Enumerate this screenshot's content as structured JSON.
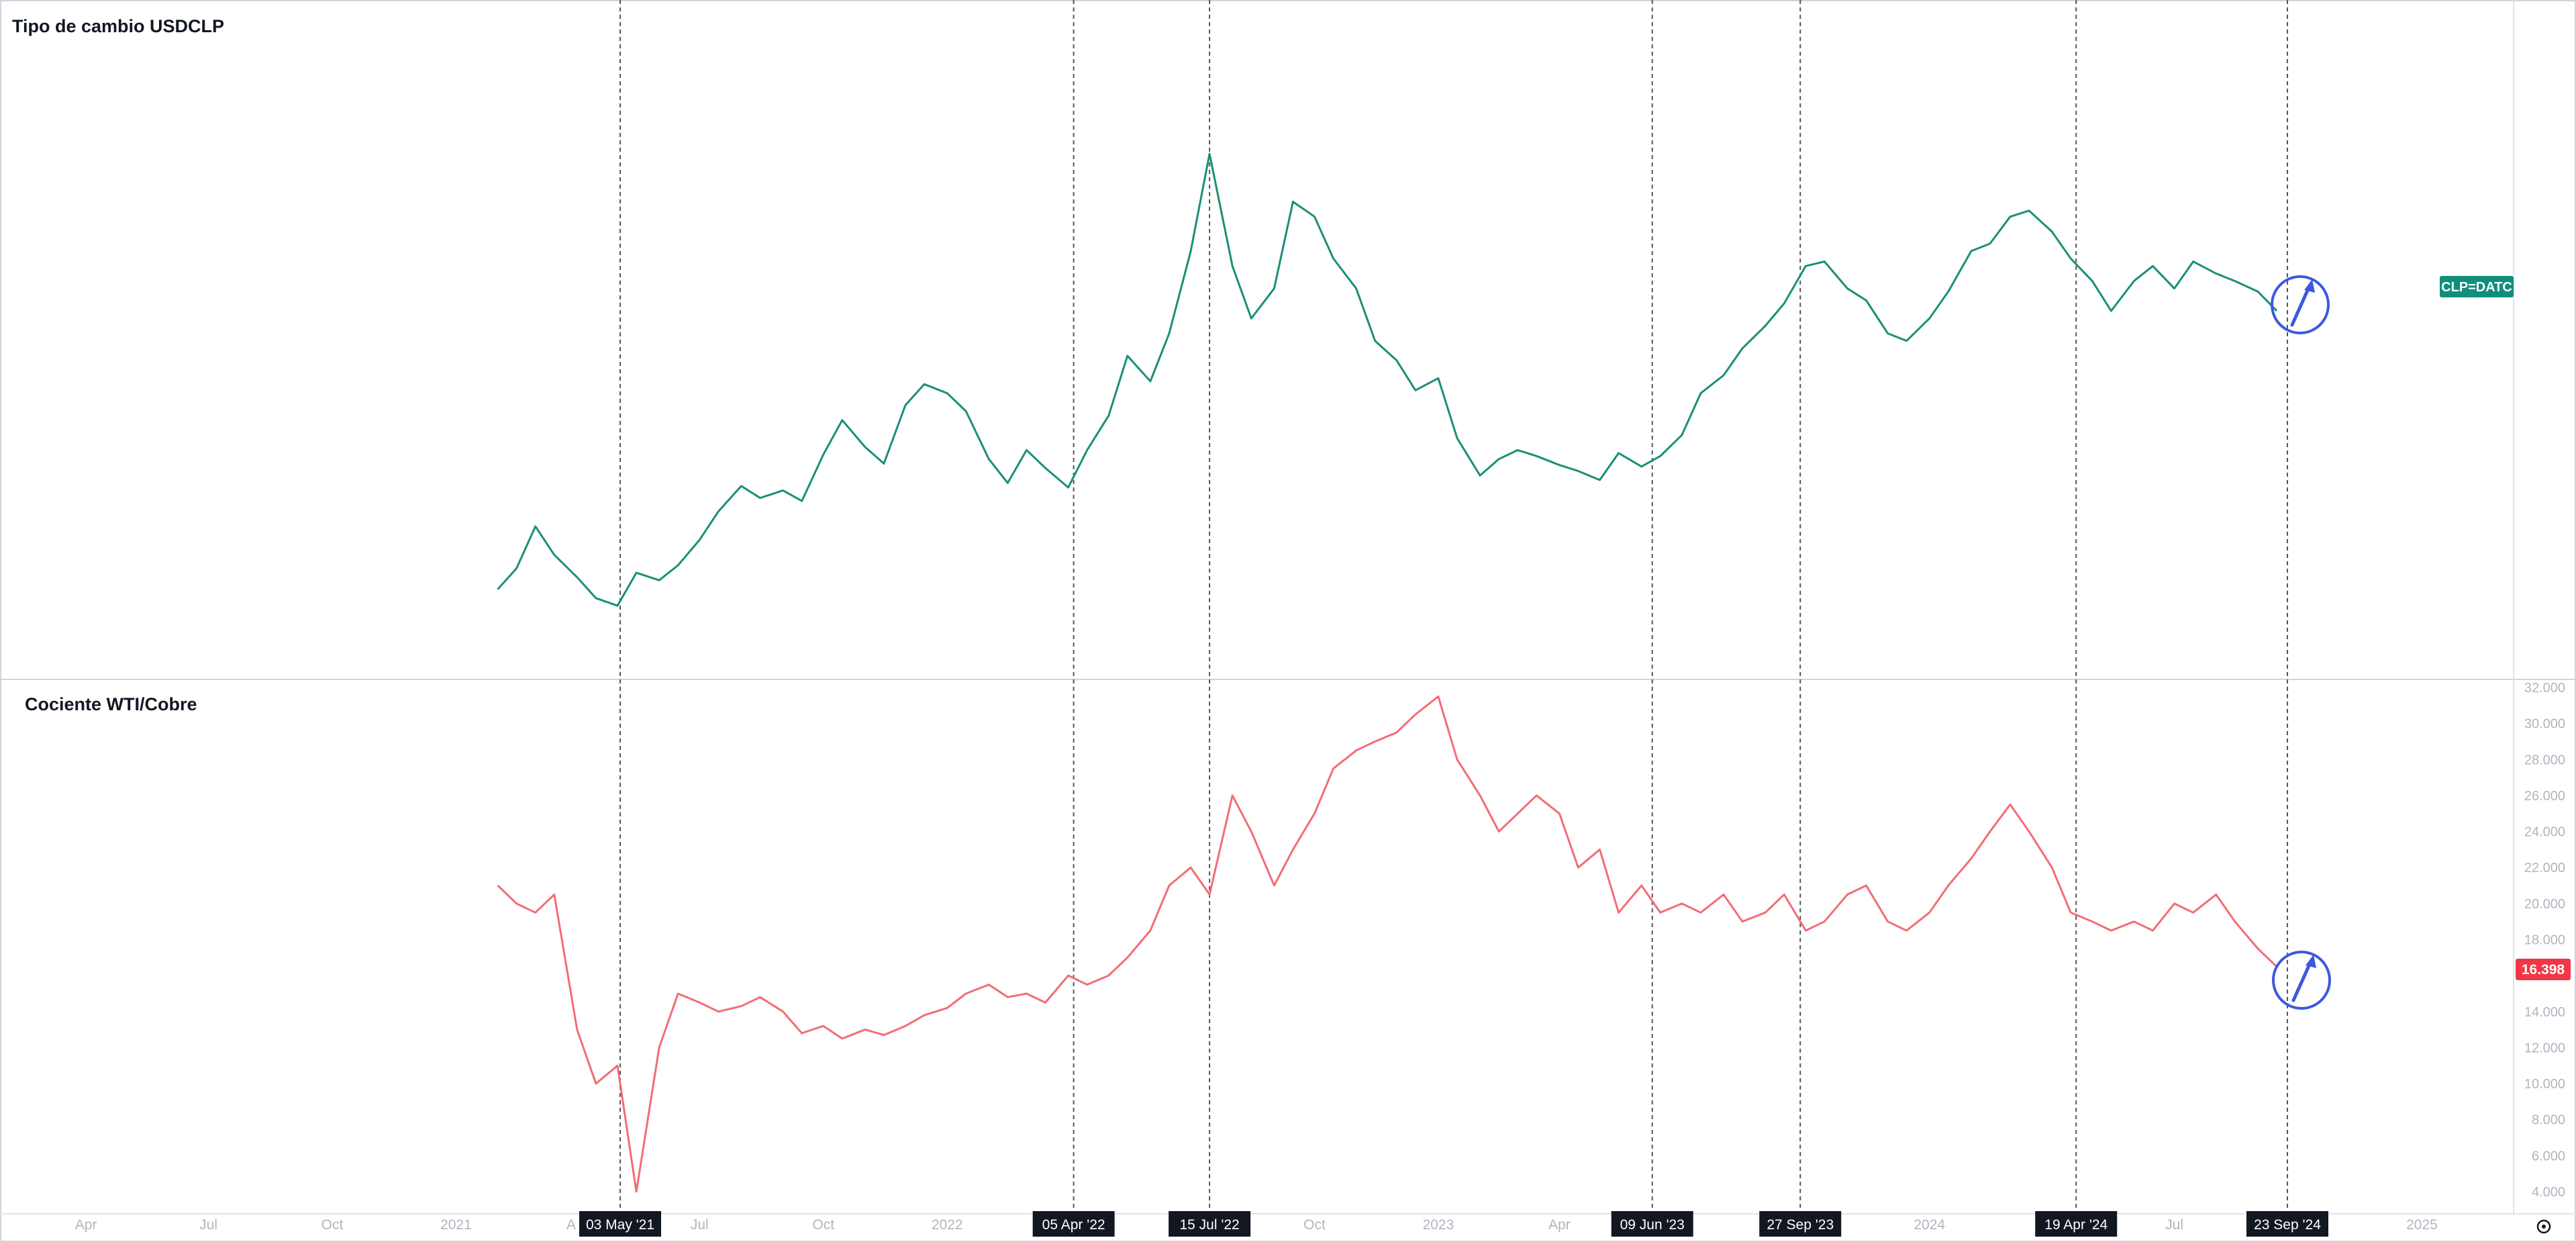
{
  "colors": {
    "top_series": "#1a8f78",
    "bottom_series": "#f26d75",
    "top_badge_bg": "#0f8f7c",
    "bottom_badge_bg": "#f23645",
    "annotation": "#3d58e0",
    "vline": "#555555",
    "date_badge_bg": "#131722",
    "axis_text": "#b2b5be"
  },
  "chart_data": [
    {
      "type": "line",
      "title": "Tipo de cambio USDCLP",
      "series": [
        {
          "name": "CLP=DATC",
          "x": [
            "2021-02-01",
            "2021-02-15",
            "2021-03-01",
            "2021-03-15",
            "2021-04-01",
            "2021-04-15",
            "2021-05-01",
            "2021-05-15",
            "2021-06-01",
            "2021-06-15",
            "2021-07-01",
            "2021-07-15",
            "2021-08-01",
            "2021-08-15",
            "2021-09-01",
            "2021-09-15",
            "2021-10-01",
            "2021-10-15",
            "2021-11-01",
            "2021-11-15",
            "2021-12-01",
            "2021-12-15",
            "2022-01-01",
            "2022-01-15",
            "2022-02-01",
            "2022-02-15",
            "2022-03-01",
            "2022-03-15",
            "2022-04-01",
            "2022-04-15",
            "2022-05-01",
            "2022-05-15",
            "2022-06-01",
            "2022-06-15",
            "2022-07-01",
            "2022-07-15",
            "2022-08-01",
            "2022-08-15",
            "2022-09-01",
            "2022-09-15",
            "2022-10-01",
            "2022-10-15",
            "2022-11-01",
            "2022-11-15",
            "2022-12-01",
            "2022-12-15",
            "2023-01-01",
            "2023-01-15",
            "2023-02-01",
            "2023-02-15",
            "2023-03-01",
            "2023-03-15",
            "2023-04-01",
            "2023-04-15",
            "2023-05-01",
            "2023-05-15",
            "2023-06-01",
            "2023-06-15",
            "2023-07-01",
            "2023-07-15",
            "2023-08-01",
            "2023-08-15",
            "2023-09-01",
            "2023-09-15",
            "2023-10-01",
            "2023-10-15",
            "2023-11-01",
            "2023-11-15",
            "2023-12-01",
            "2023-12-15",
            "2024-01-01",
            "2024-01-15",
            "2024-02-01",
            "2024-02-15",
            "2024-03-01",
            "2024-03-15",
            "2024-04-01",
            "2024-04-15",
            "2024-05-01",
            "2024-05-15",
            "2024-06-01",
            "2024-06-15",
            "2024-07-01",
            "2024-07-15",
            "2024-08-01",
            "2024-08-15",
            "2024-09-01",
            "2024-09-15"
          ],
          "values": [
            719,
            733,
            761,
            742,
            727,
            713,
            708,
            730,
            725,
            735,
            752,
            771,
            788,
            780,
            785,
            778,
            809,
            832,
            814,
            803,
            842,
            856,
            850,
            838,
            806,
            790,
            812,
            800,
            787,
            812,
            835,
            875,
            858,
            890,
            945,
            1010,
            935,
            900,
            920,
            978,
            968,
            940,
            920,
            885,
            872,
            852,
            860,
            820,
            795,
            806,
            812,
            808,
            802,
            798,
            792,
            810,
            801,
            808,
            822,
            850,
            862,
            880,
            895,
            910,
            935,
            938,
            920,
            912,
            890,
            885,
            900,
            918,
            945,
            950,
            968,
            972,
            958,
            940,
            925,
            905,
            925,
            935,
            920,
            938,
            930,
            925,
            918,
            905
          ]
        }
      ]
    },
    {
      "type": "line",
      "title": "Cociente WTI/Cobre",
      "ylim": [
        4,
        32
      ],
      "yticks": [
        "4.000",
        "6.000",
        "8.000",
        "10.000",
        "12.000",
        "14.000",
        "16.000",
        "18.000",
        "20.000",
        "22.000",
        "24.000",
        "26.000",
        "28.000",
        "30.000",
        "32.000"
      ],
      "last_value_label": "16.398",
      "series": [
        {
          "name": "",
          "x": [
            "2021-02-01",
            "2021-02-15",
            "2021-03-01",
            "2021-03-15",
            "2021-04-01",
            "2021-04-15",
            "2021-05-01",
            "2021-05-15",
            "2021-06-01",
            "2021-06-15",
            "2021-07-01",
            "2021-07-15",
            "2021-08-01",
            "2021-08-15",
            "2021-09-01",
            "2021-09-15",
            "2021-10-01",
            "2021-10-15",
            "2021-11-01",
            "2021-11-15",
            "2021-12-01",
            "2021-12-15",
            "2022-01-01",
            "2022-01-15",
            "2022-02-01",
            "2022-02-15",
            "2022-03-01",
            "2022-03-15",
            "2022-04-01",
            "2022-04-15",
            "2022-05-01",
            "2022-05-15",
            "2022-06-01",
            "2022-06-15",
            "2022-07-01",
            "2022-07-15",
            "2022-08-01",
            "2022-08-15",
            "2022-09-01",
            "2022-09-15",
            "2022-10-01",
            "2022-10-15",
            "2022-11-01",
            "2022-11-15",
            "2022-12-01",
            "2022-12-15",
            "2023-01-01",
            "2023-01-15",
            "2023-02-01",
            "2023-02-15",
            "2023-03-01",
            "2023-03-15",
            "2023-04-01",
            "2023-04-15",
            "2023-05-01",
            "2023-05-15",
            "2023-06-01",
            "2023-06-15",
            "2023-07-01",
            "2023-07-15",
            "2023-08-01",
            "2023-08-15",
            "2023-09-01",
            "2023-09-15",
            "2023-10-01",
            "2023-10-15",
            "2023-11-01",
            "2023-11-15",
            "2023-12-01",
            "2023-12-15",
            "2024-01-01",
            "2024-01-15",
            "2024-02-01",
            "2024-02-15",
            "2024-03-01",
            "2024-03-15",
            "2024-04-01",
            "2024-04-15",
            "2024-05-01",
            "2024-05-15",
            "2024-06-01",
            "2024-06-15",
            "2024-07-01",
            "2024-07-15",
            "2024-08-01",
            "2024-08-15",
            "2024-09-01",
            "2024-09-15"
          ],
          "values": [
            21,
            20,
            19.5,
            20.5,
            13,
            10,
            11,
            4,
            12,
            15,
            14.5,
            14,
            14.3,
            14.8,
            14,
            12.8,
            13.2,
            12.5,
            13,
            12.7,
            13.2,
            13.8,
            14.2,
            15,
            15.5,
            14.8,
            15,
            14.5,
            16,
            15.5,
            16,
            17,
            18.5,
            21,
            22,
            20.5,
            26,
            24,
            21,
            23,
            25,
            27.5,
            28.5,
            29,
            29.5,
            30.5,
            31.5,
            28,
            26,
            24,
            25,
            26,
            25,
            22,
            23,
            19.5,
            21,
            19.5,
            20,
            19.5,
            20.5,
            19,
            19.5,
            20.5,
            18.5,
            19,
            20.5,
            21,
            19,
            18.5,
            19.5,
            21,
            22.5,
            24,
            25.5,
            24,
            22,
            19.5,
            19,
            18.5,
            19,
            18.5,
            20,
            19.5,
            20.5,
            19,
            17.5,
            16.5
          ]
        }
      ]
    }
  ],
  "x_axis": {
    "ticks": [
      {
        "label": "Apr",
        "date": "2020-04-01"
      },
      {
        "label": "Jul",
        "date": "2020-07-01"
      },
      {
        "label": "Oct",
        "date": "2020-10-01"
      },
      {
        "label": "2021",
        "date": "2021-01-01"
      },
      {
        "label": "Jul",
        "date": "2021-07-01"
      },
      {
        "label": "Oct",
        "date": "2021-10-01"
      },
      {
        "label": "2022",
        "date": "2022-01-01"
      },
      {
        "label": "Oct",
        "date": "2022-10-01"
      },
      {
        "label": "2023",
        "date": "2023-01-01"
      },
      {
        "label": "Apr",
        "date": "2023-04-01"
      },
      {
        "label": "2024",
        "date": "2024-01-01"
      },
      {
        "label": "Jul",
        "date": "2024-07-01"
      },
      {
        "label": "2025",
        "date": "2025-01-01"
      }
    ],
    "partial_tick": {
      "label": "A",
      "date": "2021-04-01"
    },
    "markers": [
      {
        "label": "03 May '21",
        "date": "2021-05-03"
      },
      {
        "label": "05 Apr '22",
        "date": "2022-04-05"
      },
      {
        "label": "15 Jul '22",
        "date": "2022-07-15"
      },
      {
        "label": "09 Jun '23",
        "date": "2023-06-09"
      },
      {
        "label": "27 Sep '23",
        "date": "2023-09-27"
      },
      {
        "label": "19 Apr '24",
        "date": "2024-04-19"
      },
      {
        "label": "23 Sep '24",
        "date": "2024-09-23"
      }
    ]
  },
  "settings_icon": "gear-icon"
}
